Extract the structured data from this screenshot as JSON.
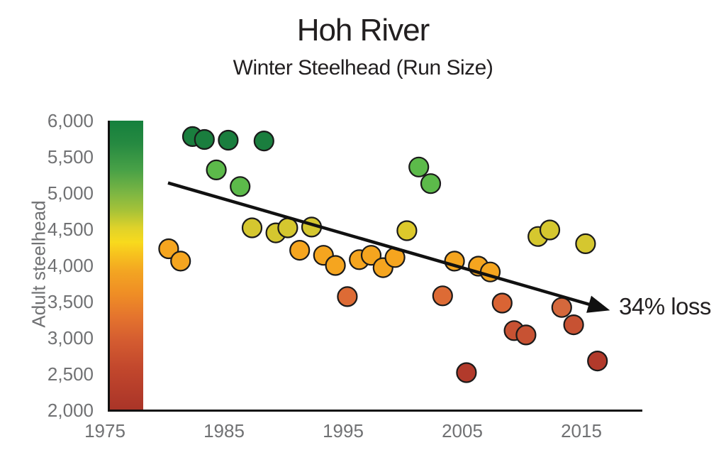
{
  "header": {
    "title": "Hoh River",
    "subtitle": "Winter Steelhead (Run Size)"
  },
  "colors": {
    "title_text": "#221f20",
    "axis_text": "#707173",
    "axis_line": "#111111",
    "point_stroke": "#1a1a1a",
    "trend_line": "#111111"
  },
  "colorbar": {
    "stops": [
      {
        "at": 0.0,
        "color": "#15803d"
      },
      {
        "at": 0.08,
        "color": "#268a41"
      },
      {
        "at": 0.17,
        "color": "#48a147"
      },
      {
        "at": 0.25,
        "color": "#7cb643"
      },
      {
        "at": 0.31,
        "color": "#a6c238"
      },
      {
        "at": 0.37,
        "color": "#dfd22a"
      },
      {
        "at": 0.42,
        "color": "#f8da1d"
      },
      {
        "at": 0.46,
        "color": "#f7c31e"
      },
      {
        "at": 0.52,
        "color": "#f3a522"
      },
      {
        "at": 0.6,
        "color": "#ef8d25"
      },
      {
        "at": 0.68,
        "color": "#e4732e"
      },
      {
        "at": 0.76,
        "color": "#d45c30"
      },
      {
        "at": 0.85,
        "color": "#c3482d"
      },
      {
        "at": 1.0,
        "color": "#a93428"
      }
    ]
  },
  "chart_data": {
    "type": "scatter",
    "title": "Hoh River",
    "subtitle": "Winter Steelhead (Run Size)",
    "xlabel": "",
    "ylabel": "Adult steelhead",
    "xlim": [
      1974.5,
      2019.5
    ],
    "ylim": [
      2000,
      6000
    ],
    "grid": false,
    "x_ticks": [
      {
        "v": 1975,
        "label": "1975"
      },
      {
        "v": 1985,
        "label": "1985"
      },
      {
        "v": 1995,
        "label": "1995"
      },
      {
        "v": 2005,
        "label": "2005"
      },
      {
        "v": 2015,
        "label": "2015"
      }
    ],
    "y_ticks": [
      {
        "v": 6000,
        "label": "6,000"
      },
      {
        "v": 5500,
        "label": "5,500"
      },
      {
        "v": 5000,
        "label": "5,000"
      },
      {
        "v": 4500,
        "label": "4,500"
      },
      {
        "v": 4000,
        "label": "4,000"
      },
      {
        "v": 3500,
        "label": "3,500"
      },
      {
        "v": 3000,
        "label": "3,000"
      },
      {
        "v": 2500,
        "label": "2,500"
      },
      {
        "v": 2000,
        "label": "2,000"
      }
    ],
    "points": [
      {
        "year": 1980,
        "value": 4230,
        "color": "#f5a51f"
      },
      {
        "year": 1981,
        "value": 4060,
        "color": "#f5a51f"
      },
      {
        "year": 1982,
        "value": 5780,
        "color": "#1a7e3e"
      },
      {
        "year": 1983,
        "value": 5740,
        "color": "#1a7e3e"
      },
      {
        "year": 1984,
        "value": 5320,
        "color": "#5cba4a"
      },
      {
        "year": 1985,
        "value": 5730,
        "color": "#1a7e3e"
      },
      {
        "year": 1986,
        "value": 5090,
        "color": "#5cba4a"
      },
      {
        "year": 1987,
        "value": 4520,
        "color": "#d5c72f"
      },
      {
        "year": 1988,
        "value": 5720,
        "color": "#1a7e3e"
      },
      {
        "year": 1989,
        "value": 4450,
        "color": "#d5c72f"
      },
      {
        "year": 1990,
        "value": 4520,
        "color": "#d5c72f"
      },
      {
        "year": 1991,
        "value": 4210,
        "color": "#f5a51f"
      },
      {
        "year": 1992,
        "value": 4530,
        "color": "#d5c72f"
      },
      {
        "year": 1993,
        "value": 4140,
        "color": "#f5a51f"
      },
      {
        "year": 1994,
        "value": 4000,
        "color": "#f5a51f"
      },
      {
        "year": 1995,
        "value": 3570,
        "color": "#dd6b35"
      },
      {
        "year": 1996,
        "value": 4080,
        "color": "#f5a51f"
      },
      {
        "year": 1997,
        "value": 4140,
        "color": "#f5a51f"
      },
      {
        "year": 1998,
        "value": 3970,
        "color": "#f5a51f"
      },
      {
        "year": 1999,
        "value": 4110,
        "color": "#f5a51f"
      },
      {
        "year": 2000,
        "value": 4480,
        "color": "#ddc92b"
      },
      {
        "year": 2001,
        "value": 5360,
        "color": "#5cba4a"
      },
      {
        "year": 2002,
        "value": 5130,
        "color": "#5cba4a"
      },
      {
        "year": 2003,
        "value": 3580,
        "color": "#dd6b35"
      },
      {
        "year": 2004,
        "value": 4060,
        "color": "#f5a51f"
      },
      {
        "year": 2005,
        "value": 2520,
        "color": "#b23a2b"
      },
      {
        "year": 2006,
        "value": 3990,
        "color": "#f5a51f"
      },
      {
        "year": 2007,
        "value": 3910,
        "color": "#f5a51f"
      },
      {
        "year": 2008,
        "value": 3480,
        "color": "#d96434"
      },
      {
        "year": 2009,
        "value": 3100,
        "color": "#c75233"
      },
      {
        "year": 2010,
        "value": 3040,
        "color": "#c75233"
      },
      {
        "year": 2011,
        "value": 4400,
        "color": "#d5c72f"
      },
      {
        "year": 2012,
        "value": 4490,
        "color": "#d5c72f"
      },
      {
        "year": 2013,
        "value": 3420,
        "color": "#d4683c"
      },
      {
        "year": 2014,
        "value": 3180,
        "color": "#c75233"
      },
      {
        "year": 2015,
        "value": 4300,
        "color": "#d5c72f"
      },
      {
        "year": 2016,
        "value": 2680,
        "color": "#b23a2b"
      }
    ],
    "trend": {
      "x1": 1980.3,
      "y1": 5140,
      "x2": 2017.4,
      "y2": 3380,
      "label": "34% loss"
    }
  }
}
